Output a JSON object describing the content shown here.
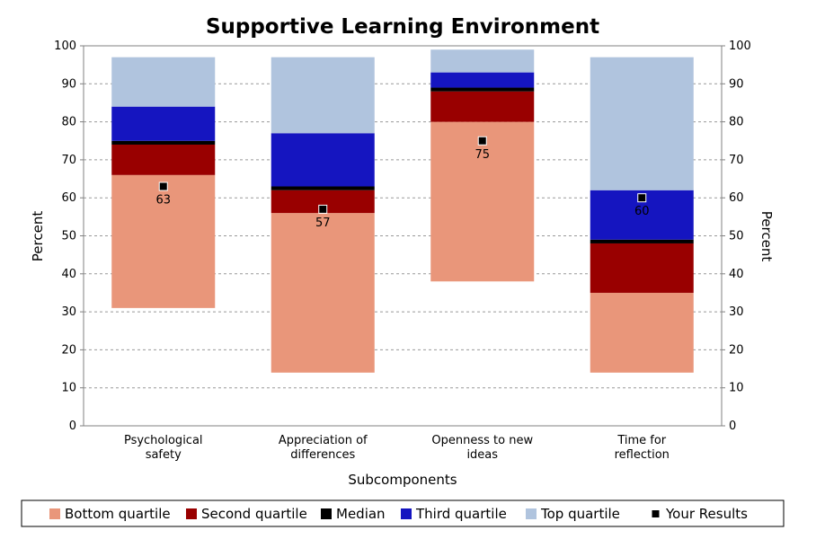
{
  "chart_data": {
    "type": "bar",
    "title": "Supportive Learning Environment",
    "xlabel": "Subcomponents",
    "ylabel": "Percent",
    "ylabel_right": "Percent",
    "ylim": [
      0,
      100
    ],
    "yticks": [
      0,
      10,
      20,
      30,
      40,
      50,
      60,
      70,
      80,
      90,
      100
    ],
    "grid": true,
    "legend_position": "bottom",
    "categories": [
      [
        "Psychological",
        "safety"
      ],
      [
        "Appreciation of",
        "differences"
      ],
      [
        "Openness to new",
        "ideas"
      ],
      [
        "Time for",
        "reflection"
      ]
    ],
    "series": [
      {
        "name": "Bottom quartile",
        "color": "#e9967a",
        "ranges": [
          [
            31,
            66
          ],
          [
            14,
            56
          ],
          [
            38,
            80
          ],
          [
            14,
            35
          ]
        ]
      },
      {
        "name": "Second quartile",
        "color": "#990000",
        "ranges": [
          [
            66,
            74
          ],
          [
            56,
            62
          ],
          [
            80,
            88
          ],
          [
            35,
            48
          ]
        ]
      },
      {
        "name": "Median",
        "color": "#000000",
        "ranges": [
          [
            74,
            75
          ],
          [
            62,
            63
          ],
          [
            88,
            89
          ],
          [
            48,
            49
          ]
        ]
      },
      {
        "name": "Third quartile",
        "color": "#1515c0",
        "ranges": [
          [
            75,
            84
          ],
          [
            63,
            77
          ],
          [
            89,
            93
          ],
          [
            49,
            62
          ]
        ]
      },
      {
        "name": "Top quartile",
        "color": "#b0c4de",
        "ranges": [
          [
            84,
            97
          ],
          [
            77,
            97
          ],
          [
            93,
            99
          ],
          [
            62,
            97
          ]
        ]
      }
    ],
    "your_results": {
      "name": "Your Results",
      "values": [
        63,
        57,
        75,
        60
      ]
    }
  }
}
